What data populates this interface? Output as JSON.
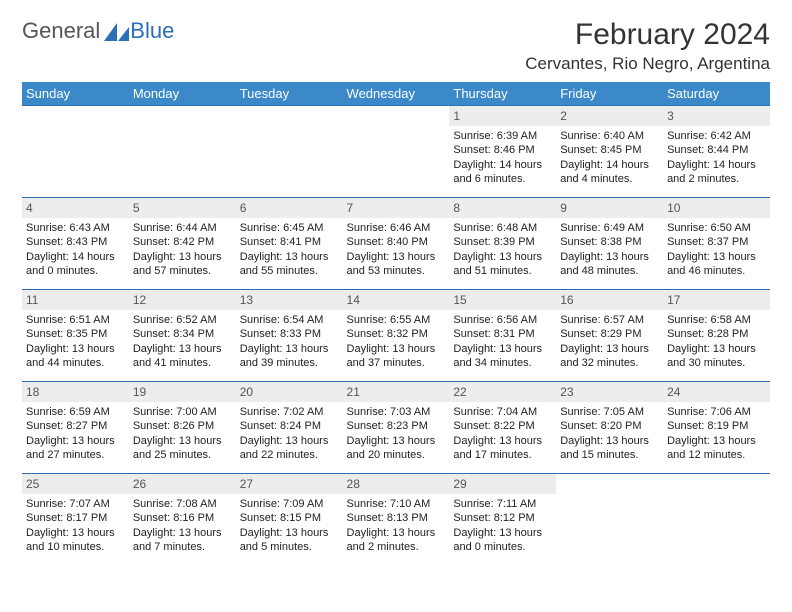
{
  "brand": {
    "part1": "General",
    "part2": "Blue"
  },
  "title": {
    "month": "February 2024",
    "location": "Cervantes, Rio Negro, Argentina"
  },
  "colors": {
    "header_bg": "#3b89c9",
    "header_text": "#ffffff",
    "row_border": "#2d6fb6",
    "daynum_bg": "#ededed"
  },
  "weekdays": [
    "Sunday",
    "Monday",
    "Tuesday",
    "Wednesday",
    "Thursday",
    "Friday",
    "Saturday"
  ],
  "weeks": [
    [
      {
        "blank": true
      },
      {
        "blank": true
      },
      {
        "blank": true
      },
      {
        "blank": true
      },
      {
        "n": "1",
        "sr": "Sunrise: 6:39 AM",
        "ss": "Sunset: 8:46 PM",
        "dl": "Daylight: 14 hours and 6 minutes."
      },
      {
        "n": "2",
        "sr": "Sunrise: 6:40 AM",
        "ss": "Sunset: 8:45 PM",
        "dl": "Daylight: 14 hours and 4 minutes."
      },
      {
        "n": "3",
        "sr": "Sunrise: 6:42 AM",
        "ss": "Sunset: 8:44 PM",
        "dl": "Daylight: 14 hours and 2 minutes."
      }
    ],
    [
      {
        "n": "4",
        "sr": "Sunrise: 6:43 AM",
        "ss": "Sunset: 8:43 PM",
        "dl": "Daylight: 14 hours and 0 minutes."
      },
      {
        "n": "5",
        "sr": "Sunrise: 6:44 AM",
        "ss": "Sunset: 8:42 PM",
        "dl": "Daylight: 13 hours and 57 minutes."
      },
      {
        "n": "6",
        "sr": "Sunrise: 6:45 AM",
        "ss": "Sunset: 8:41 PM",
        "dl": "Daylight: 13 hours and 55 minutes."
      },
      {
        "n": "7",
        "sr": "Sunrise: 6:46 AM",
        "ss": "Sunset: 8:40 PM",
        "dl": "Daylight: 13 hours and 53 minutes."
      },
      {
        "n": "8",
        "sr": "Sunrise: 6:48 AM",
        "ss": "Sunset: 8:39 PM",
        "dl": "Daylight: 13 hours and 51 minutes."
      },
      {
        "n": "9",
        "sr": "Sunrise: 6:49 AM",
        "ss": "Sunset: 8:38 PM",
        "dl": "Daylight: 13 hours and 48 minutes."
      },
      {
        "n": "10",
        "sr": "Sunrise: 6:50 AM",
        "ss": "Sunset: 8:37 PM",
        "dl": "Daylight: 13 hours and 46 minutes."
      }
    ],
    [
      {
        "n": "11",
        "sr": "Sunrise: 6:51 AM",
        "ss": "Sunset: 8:35 PM",
        "dl": "Daylight: 13 hours and 44 minutes."
      },
      {
        "n": "12",
        "sr": "Sunrise: 6:52 AM",
        "ss": "Sunset: 8:34 PM",
        "dl": "Daylight: 13 hours and 41 minutes."
      },
      {
        "n": "13",
        "sr": "Sunrise: 6:54 AM",
        "ss": "Sunset: 8:33 PM",
        "dl": "Daylight: 13 hours and 39 minutes."
      },
      {
        "n": "14",
        "sr": "Sunrise: 6:55 AM",
        "ss": "Sunset: 8:32 PM",
        "dl": "Daylight: 13 hours and 37 minutes."
      },
      {
        "n": "15",
        "sr": "Sunrise: 6:56 AM",
        "ss": "Sunset: 8:31 PM",
        "dl": "Daylight: 13 hours and 34 minutes."
      },
      {
        "n": "16",
        "sr": "Sunrise: 6:57 AM",
        "ss": "Sunset: 8:29 PM",
        "dl": "Daylight: 13 hours and 32 minutes."
      },
      {
        "n": "17",
        "sr": "Sunrise: 6:58 AM",
        "ss": "Sunset: 8:28 PM",
        "dl": "Daylight: 13 hours and 30 minutes."
      }
    ],
    [
      {
        "n": "18",
        "sr": "Sunrise: 6:59 AM",
        "ss": "Sunset: 8:27 PM",
        "dl": "Daylight: 13 hours and 27 minutes."
      },
      {
        "n": "19",
        "sr": "Sunrise: 7:00 AM",
        "ss": "Sunset: 8:26 PM",
        "dl": "Daylight: 13 hours and 25 minutes."
      },
      {
        "n": "20",
        "sr": "Sunrise: 7:02 AM",
        "ss": "Sunset: 8:24 PM",
        "dl": "Daylight: 13 hours and 22 minutes."
      },
      {
        "n": "21",
        "sr": "Sunrise: 7:03 AM",
        "ss": "Sunset: 8:23 PM",
        "dl": "Daylight: 13 hours and 20 minutes."
      },
      {
        "n": "22",
        "sr": "Sunrise: 7:04 AM",
        "ss": "Sunset: 8:22 PM",
        "dl": "Daylight: 13 hours and 17 minutes."
      },
      {
        "n": "23",
        "sr": "Sunrise: 7:05 AM",
        "ss": "Sunset: 8:20 PM",
        "dl": "Daylight: 13 hours and 15 minutes."
      },
      {
        "n": "24",
        "sr": "Sunrise: 7:06 AM",
        "ss": "Sunset: 8:19 PM",
        "dl": "Daylight: 13 hours and 12 minutes."
      }
    ],
    [
      {
        "n": "25",
        "sr": "Sunrise: 7:07 AM",
        "ss": "Sunset: 8:17 PM",
        "dl": "Daylight: 13 hours and 10 minutes."
      },
      {
        "n": "26",
        "sr": "Sunrise: 7:08 AM",
        "ss": "Sunset: 8:16 PM",
        "dl": "Daylight: 13 hours and 7 minutes."
      },
      {
        "n": "27",
        "sr": "Sunrise: 7:09 AM",
        "ss": "Sunset: 8:15 PM",
        "dl": "Daylight: 13 hours and 5 minutes."
      },
      {
        "n": "28",
        "sr": "Sunrise: 7:10 AM",
        "ss": "Sunset: 8:13 PM",
        "dl": "Daylight: 13 hours and 2 minutes."
      },
      {
        "n": "29",
        "sr": "Sunrise: 7:11 AM",
        "ss": "Sunset: 8:12 PM",
        "dl": "Daylight: 13 hours and 0 minutes."
      },
      {
        "blank": true
      },
      {
        "blank": true
      }
    ]
  ]
}
